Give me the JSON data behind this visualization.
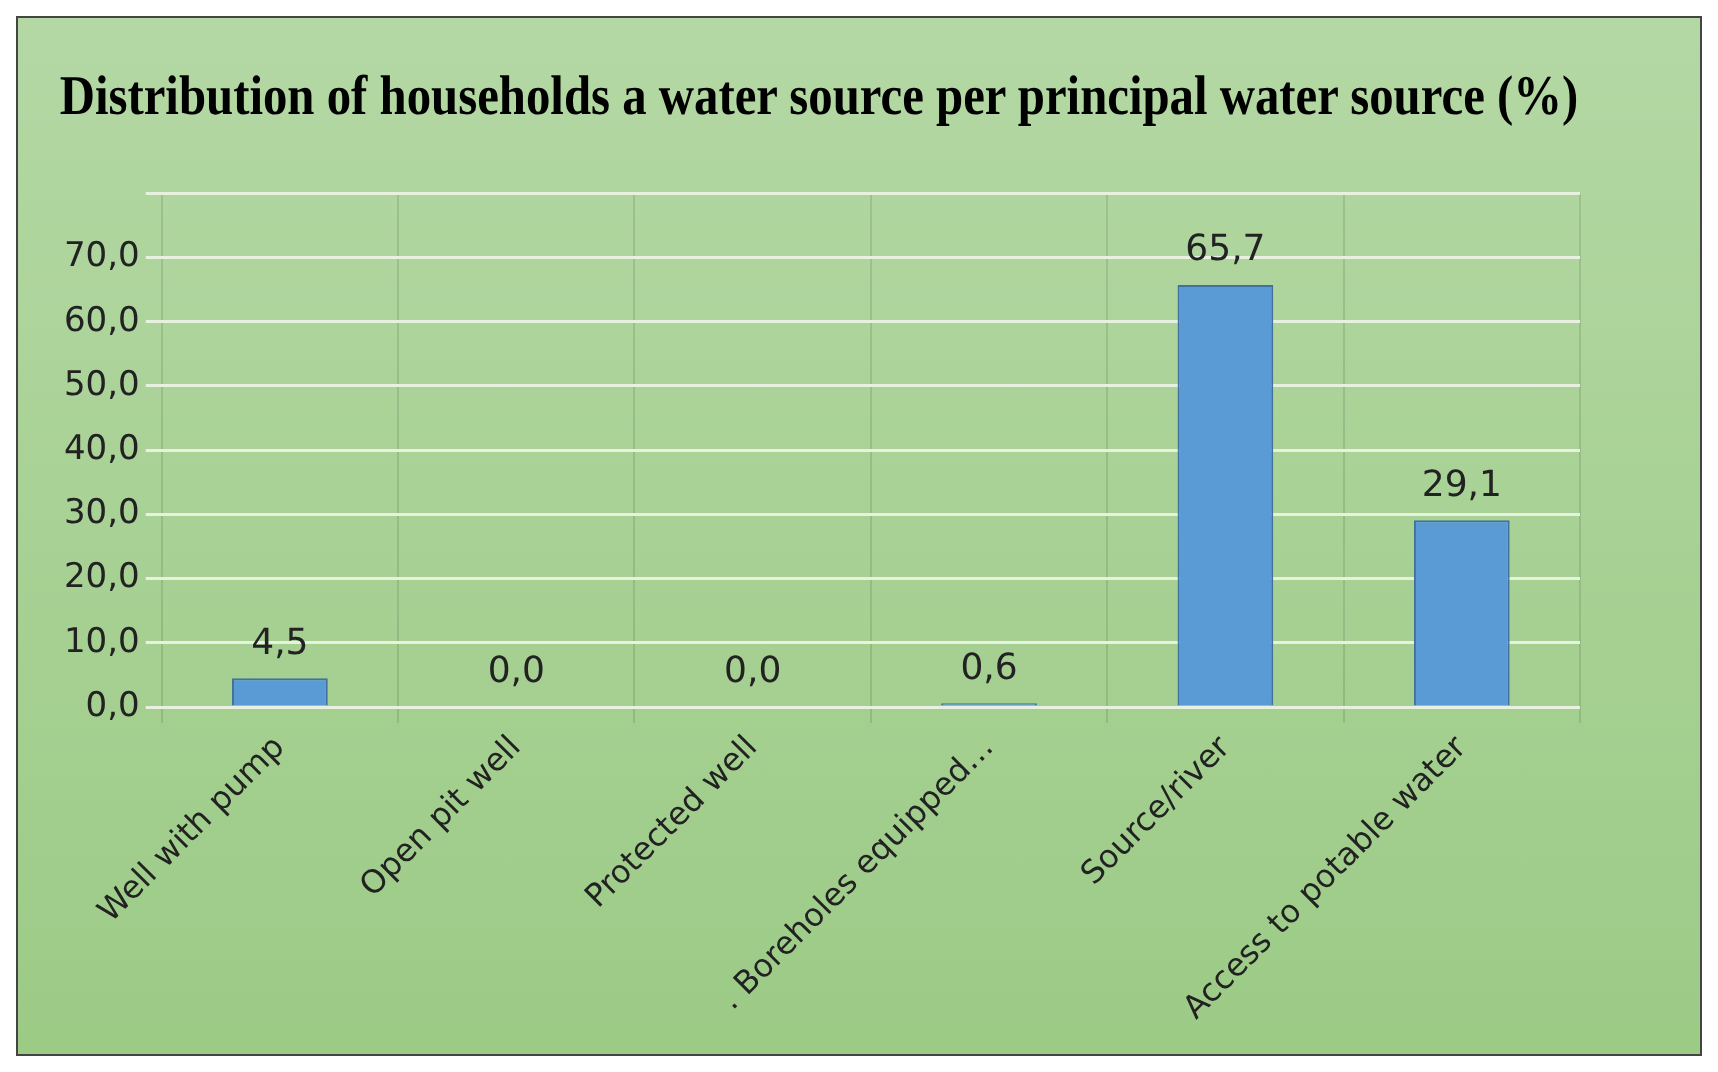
{
  "chart_data": {
    "type": "bar",
    "title": "Distribution of households a water source per principal water source (%)",
    "categories": [
      "Well with pump",
      "Open pit well",
      "Protected well",
      ". Boreholes equipped…",
      "Source/river",
      "Access to potable water"
    ],
    "values": [
      4.5,
      0.0,
      0.0,
      0.6,
      65.7,
      29.1
    ],
    "value_labels": [
      "4,5",
      "0,0",
      "0,0",
      "0,6",
      "65,7",
      "29,1"
    ],
    "color": "#5b9bd5",
    "ylim": [
      0,
      80
    ],
    "yticks": [
      {
        "value": 0,
        "label": "0,0"
      },
      {
        "value": 10,
        "label": "10,0"
      },
      {
        "value": 20,
        "label": "20,0"
      },
      {
        "value": 30,
        "label": "30,0"
      },
      {
        "value": 40,
        "label": "40,0"
      },
      {
        "value": 50,
        "label": "50,0"
      },
      {
        "value": 60,
        "label": "60,0"
      },
      {
        "value": 70,
        "label": "70,0"
      },
      {
        "value": 80,
        "label": null
      }
    ],
    "grid": true
  }
}
